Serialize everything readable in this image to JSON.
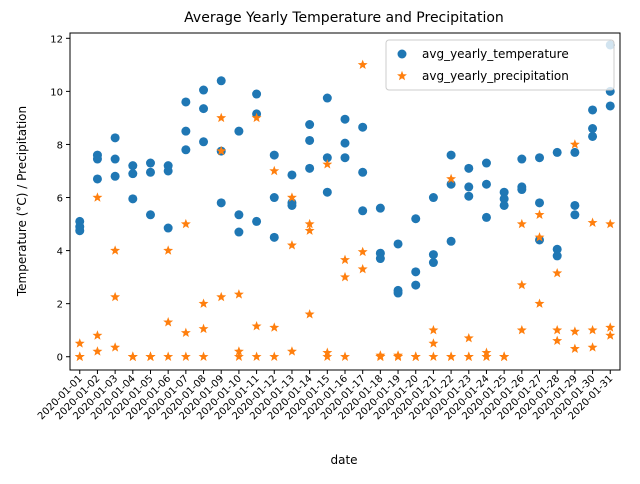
{
  "chart_data": {
    "type": "scatter",
    "title": "Average Yearly Temperature and Precipitation",
    "xlabel": "date",
    "ylabel": "Temperature (°C) / Precipitation",
    "ylim": [
      -0.5,
      12.2
    ],
    "yticks": [
      0,
      2,
      4,
      6,
      8,
      10,
      12
    ],
    "grid": false,
    "legend": "top-right",
    "categories": [
      "2020-01-01",
      "2020-01-02",
      "2020-01-03",
      "2020-01-04",
      "2020-01-05",
      "2020-01-06",
      "2020-01-07",
      "2020-01-08",
      "2020-01-09",
      "2020-01-10",
      "2020-01-11",
      "2020-01-12",
      "2020-01-13",
      "2020-01-14",
      "2020-01-15",
      "2020-01-16",
      "2020-01-17",
      "2020-01-18",
      "2020-01-19",
      "2020-01-20",
      "2020-01-21",
      "2020-01-22",
      "2020-01-23",
      "2020-01-24",
      "2020-01-25",
      "2020-01-26",
      "2020-01-27",
      "2020-01-28",
      "2020-01-29",
      "2020-01-30",
      "2020-01-31"
    ],
    "series": [
      {
        "name": "avg_yearly_temperature",
        "color": "#1f77b4",
        "marker": "circle",
        "points": [
          [
            "2020-01-01",
            5.1
          ],
          [
            "2020-01-01",
            4.9
          ],
          [
            "2020-01-01",
            4.75
          ],
          [
            "2020-01-02",
            7.6
          ],
          [
            "2020-01-02",
            7.45
          ],
          [
            "2020-01-02",
            6.7
          ],
          [
            "2020-01-03",
            8.25
          ],
          [
            "2020-01-03",
            7.45
          ],
          [
            "2020-01-03",
            6.8
          ],
          [
            "2020-01-04",
            7.2
          ],
          [
            "2020-01-04",
            6.9
          ],
          [
            "2020-01-04",
            5.95
          ],
          [
            "2020-01-05",
            7.3
          ],
          [
            "2020-01-05",
            6.95
          ],
          [
            "2020-01-05",
            5.35
          ],
          [
            "2020-01-06",
            7.2
          ],
          [
            "2020-01-06",
            7.0
          ],
          [
            "2020-01-06",
            4.85
          ],
          [
            "2020-01-07",
            9.6
          ],
          [
            "2020-01-07",
            8.5
          ],
          [
            "2020-01-07",
            7.8
          ],
          [
            "2020-01-08",
            10.05
          ],
          [
            "2020-01-08",
            9.35
          ],
          [
            "2020-01-08",
            8.1
          ],
          [
            "2020-01-09",
            10.4
          ],
          [
            "2020-01-09",
            7.75
          ],
          [
            "2020-01-09",
            5.8
          ],
          [
            "2020-01-10",
            8.5
          ],
          [
            "2020-01-10",
            5.35
          ],
          [
            "2020-01-10",
            4.7
          ],
          [
            "2020-01-11",
            9.9
          ],
          [
            "2020-01-11",
            9.15
          ],
          [
            "2020-01-11",
            5.1
          ],
          [
            "2020-01-12",
            7.6
          ],
          [
            "2020-01-12",
            6.0
          ],
          [
            "2020-01-12",
            4.5
          ],
          [
            "2020-01-13",
            6.85
          ],
          [
            "2020-01-13",
            5.8
          ],
          [
            "2020-01-13",
            5.7
          ],
          [
            "2020-01-14",
            8.75
          ],
          [
            "2020-01-14",
            8.15
          ],
          [
            "2020-01-14",
            7.1
          ],
          [
            "2020-01-15",
            9.75
          ],
          [
            "2020-01-15",
            7.5
          ],
          [
            "2020-01-15",
            6.2
          ],
          [
            "2020-01-16",
            8.95
          ],
          [
            "2020-01-16",
            8.05
          ],
          [
            "2020-01-16",
            7.5
          ],
          [
            "2020-01-17",
            8.65
          ],
          [
            "2020-01-17",
            6.95
          ],
          [
            "2020-01-17",
            5.5
          ],
          [
            "2020-01-18",
            5.6
          ],
          [
            "2020-01-18",
            3.9
          ],
          [
            "2020-01-18",
            3.7
          ],
          [
            "2020-01-19",
            4.25
          ],
          [
            "2020-01-19",
            2.5
          ],
          [
            "2020-01-19",
            2.4
          ],
          [
            "2020-01-20",
            5.2
          ],
          [
            "2020-01-20",
            3.2
          ],
          [
            "2020-01-20",
            2.7
          ],
          [
            "2020-01-21",
            6.0
          ],
          [
            "2020-01-21",
            3.85
          ],
          [
            "2020-01-21",
            3.55
          ],
          [
            "2020-01-22",
            7.6
          ],
          [
            "2020-01-22",
            6.5
          ],
          [
            "2020-01-22",
            4.35
          ],
          [
            "2020-01-23",
            7.1
          ],
          [
            "2020-01-23",
            6.4
          ],
          [
            "2020-01-23",
            6.05
          ],
          [
            "2020-01-24",
            7.3
          ],
          [
            "2020-01-24",
            6.5
          ],
          [
            "2020-01-24",
            5.25
          ],
          [
            "2020-01-25",
            6.2
          ],
          [
            "2020-01-25",
            5.95
          ],
          [
            "2020-01-25",
            5.7
          ],
          [
            "2020-01-26",
            7.45
          ],
          [
            "2020-01-26",
            6.4
          ],
          [
            "2020-01-26",
            6.3
          ],
          [
            "2020-01-27",
            7.5
          ],
          [
            "2020-01-27",
            5.8
          ],
          [
            "2020-01-27",
            4.4
          ],
          [
            "2020-01-28",
            7.7
          ],
          [
            "2020-01-28",
            4.05
          ],
          [
            "2020-01-28",
            3.8
          ],
          [
            "2020-01-29",
            7.7
          ],
          [
            "2020-01-29",
            5.7
          ],
          [
            "2020-01-29",
            5.35
          ],
          [
            "2020-01-30",
            9.3
          ],
          [
            "2020-01-30",
            8.6
          ],
          [
            "2020-01-30",
            8.3
          ],
          [
            "2020-01-31",
            11.75
          ],
          [
            "2020-01-31",
            10.0
          ],
          [
            "2020-01-31",
            9.45
          ]
        ]
      },
      {
        "name": "avg_yearly_precipitation",
        "color": "#ff7f0e",
        "marker": "star",
        "points": [
          [
            "2020-01-01",
            0.5
          ],
          [
            "2020-01-01",
            0.0
          ],
          [
            "2020-01-01",
            0.0
          ],
          [
            "2020-01-02",
            6.0
          ],
          [
            "2020-01-02",
            0.8
          ],
          [
            "2020-01-02",
            0.2
          ],
          [
            "2020-01-03",
            4.0
          ],
          [
            "2020-01-03",
            2.25
          ],
          [
            "2020-01-03",
            0.35
          ],
          [
            "2020-01-04",
            0.0
          ],
          [
            "2020-01-04",
            0.0
          ],
          [
            "2020-01-04",
            0.0
          ],
          [
            "2020-01-05",
            0.0
          ],
          [
            "2020-01-05",
            0.0
          ],
          [
            "2020-01-05",
            0.0
          ],
          [
            "2020-01-06",
            4.0
          ],
          [
            "2020-01-06",
            1.3
          ],
          [
            "2020-01-06",
            0.0
          ],
          [
            "2020-01-07",
            5.0
          ],
          [
            "2020-01-07",
            0.9
          ],
          [
            "2020-01-07",
            0.0
          ],
          [
            "2020-01-08",
            2.0
          ],
          [
            "2020-01-08",
            1.05
          ],
          [
            "2020-01-08",
            0.0
          ],
          [
            "2020-01-09",
            9.0
          ],
          [
            "2020-01-09",
            7.75
          ],
          [
            "2020-01-09",
            2.25
          ],
          [
            "2020-01-10",
            2.35
          ],
          [
            "2020-01-10",
            0.2
          ],
          [
            "2020-01-10",
            0.0
          ],
          [
            "2020-01-11",
            9.0
          ],
          [
            "2020-01-11",
            1.15
          ],
          [
            "2020-01-11",
            0.0
          ],
          [
            "2020-01-12",
            7.0
          ],
          [
            "2020-01-12",
            1.1
          ],
          [
            "2020-01-12",
            0.0
          ],
          [
            "2020-01-13",
            6.0
          ],
          [
            "2020-01-13",
            4.2
          ],
          [
            "2020-01-13",
            0.2
          ],
          [
            "2020-01-14",
            5.0
          ],
          [
            "2020-01-14",
            4.75
          ],
          [
            "2020-01-14",
            1.6
          ],
          [
            "2020-01-15",
            7.25
          ],
          [
            "2020-01-15",
            0.15
          ],
          [
            "2020-01-15",
            0.0
          ],
          [
            "2020-01-16",
            3.65
          ],
          [
            "2020-01-16",
            3.0
          ],
          [
            "2020-01-16",
            0.0
          ],
          [
            "2020-01-17",
            11.0
          ],
          [
            "2020-01-17",
            3.95
          ],
          [
            "2020-01-17",
            3.3
          ],
          [
            "2020-01-18",
            0.05
          ],
          [
            "2020-01-18",
            0.0
          ],
          [
            "2020-01-18",
            0.0
          ],
          [
            "2020-01-19",
            0.05
          ],
          [
            "2020-01-19",
            0.0
          ],
          [
            "2020-01-19",
            0.0
          ],
          [
            "2020-01-20",
            0.0
          ],
          [
            "2020-01-20",
            0.0
          ],
          [
            "2020-01-20",
            0.0
          ],
          [
            "2020-01-21",
            1.0
          ],
          [
            "2020-01-21",
            0.5
          ],
          [
            "2020-01-21",
            0.0
          ],
          [
            "2020-01-22",
            6.7
          ],
          [
            "2020-01-22",
            0.0
          ],
          [
            "2020-01-22",
            0.0
          ],
          [
            "2020-01-23",
            0.7
          ],
          [
            "2020-01-23",
            0.0
          ],
          [
            "2020-01-23",
            0.0
          ],
          [
            "2020-01-24",
            0.15
          ],
          [
            "2020-01-24",
            0.0
          ],
          [
            "2020-01-24",
            0.0
          ],
          [
            "2020-01-25",
            0.0
          ],
          [
            "2020-01-25",
            0.0
          ],
          [
            "2020-01-25",
            0.0
          ],
          [
            "2020-01-26",
            5.0
          ],
          [
            "2020-01-26",
            2.7
          ],
          [
            "2020-01-26",
            1.0
          ],
          [
            "2020-01-27",
            5.35
          ],
          [
            "2020-01-27",
            4.5
          ],
          [
            "2020-01-27",
            2.0
          ],
          [
            "2020-01-28",
            3.15
          ],
          [
            "2020-01-28",
            1.0
          ],
          [
            "2020-01-28",
            0.6
          ],
          [
            "2020-01-29",
            8.0
          ],
          [
            "2020-01-29",
            0.95
          ],
          [
            "2020-01-29",
            0.3
          ],
          [
            "2020-01-30",
            5.05
          ],
          [
            "2020-01-30",
            1.0
          ],
          [
            "2020-01-30",
            0.35
          ],
          [
            "2020-01-31",
            5.0
          ],
          [
            "2020-01-31",
            1.1
          ],
          [
            "2020-01-31",
            0.8
          ]
        ]
      }
    ]
  }
}
